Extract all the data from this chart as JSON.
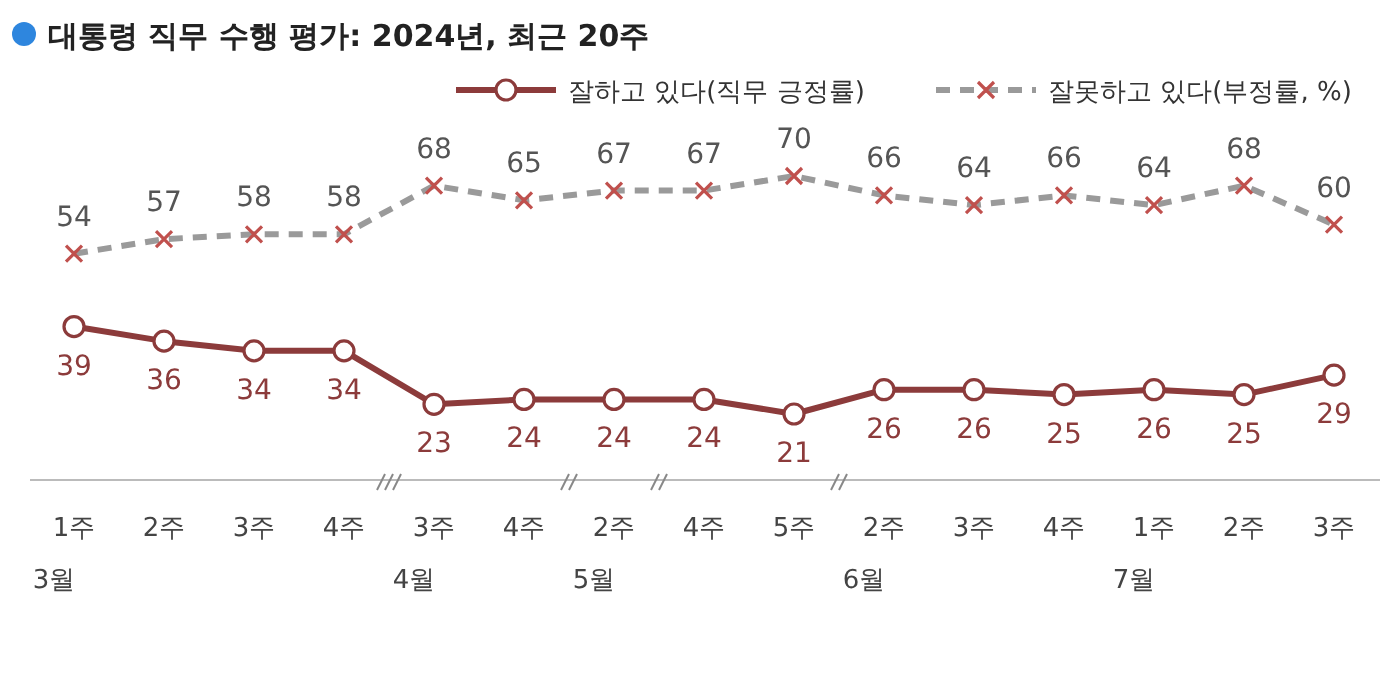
{
  "chart_data": {
    "type": "line",
    "title": "대통령 직무 수행 평가: 2024년, 최근 20주",
    "categories": [
      "1주\n3월",
      "2주",
      "3주",
      "4주",
      "3주\n4월",
      "4주",
      "2주\n5월",
      "4주",
      "5주",
      "2주\n6월",
      "3주",
      "4주",
      "1주\n7월",
      "2주",
      "3주"
    ],
    "series": [
      {
        "name": "잘하고 있다(직무 긍정률)",
        "color": "#8c3b3b",
        "marker": "circle",
        "line_style": "solid",
        "values": [
          39,
          36,
          34,
          34,
          23,
          24,
          24,
          24,
          21,
          26,
          26,
          25,
          26,
          25,
          29
        ]
      },
      {
        "name": "잘못하고 있다(부정률, %)",
        "color": "#9a9a9a",
        "marker": "cross",
        "line_style": "dashed",
        "values": [
          54,
          57,
          58,
          58,
          68,
          65,
          67,
          67,
          70,
          66,
          64,
          66,
          64,
          68,
          60
        ]
      }
    ],
    "data_labels": true,
    "legend": "top right"
  }
}
